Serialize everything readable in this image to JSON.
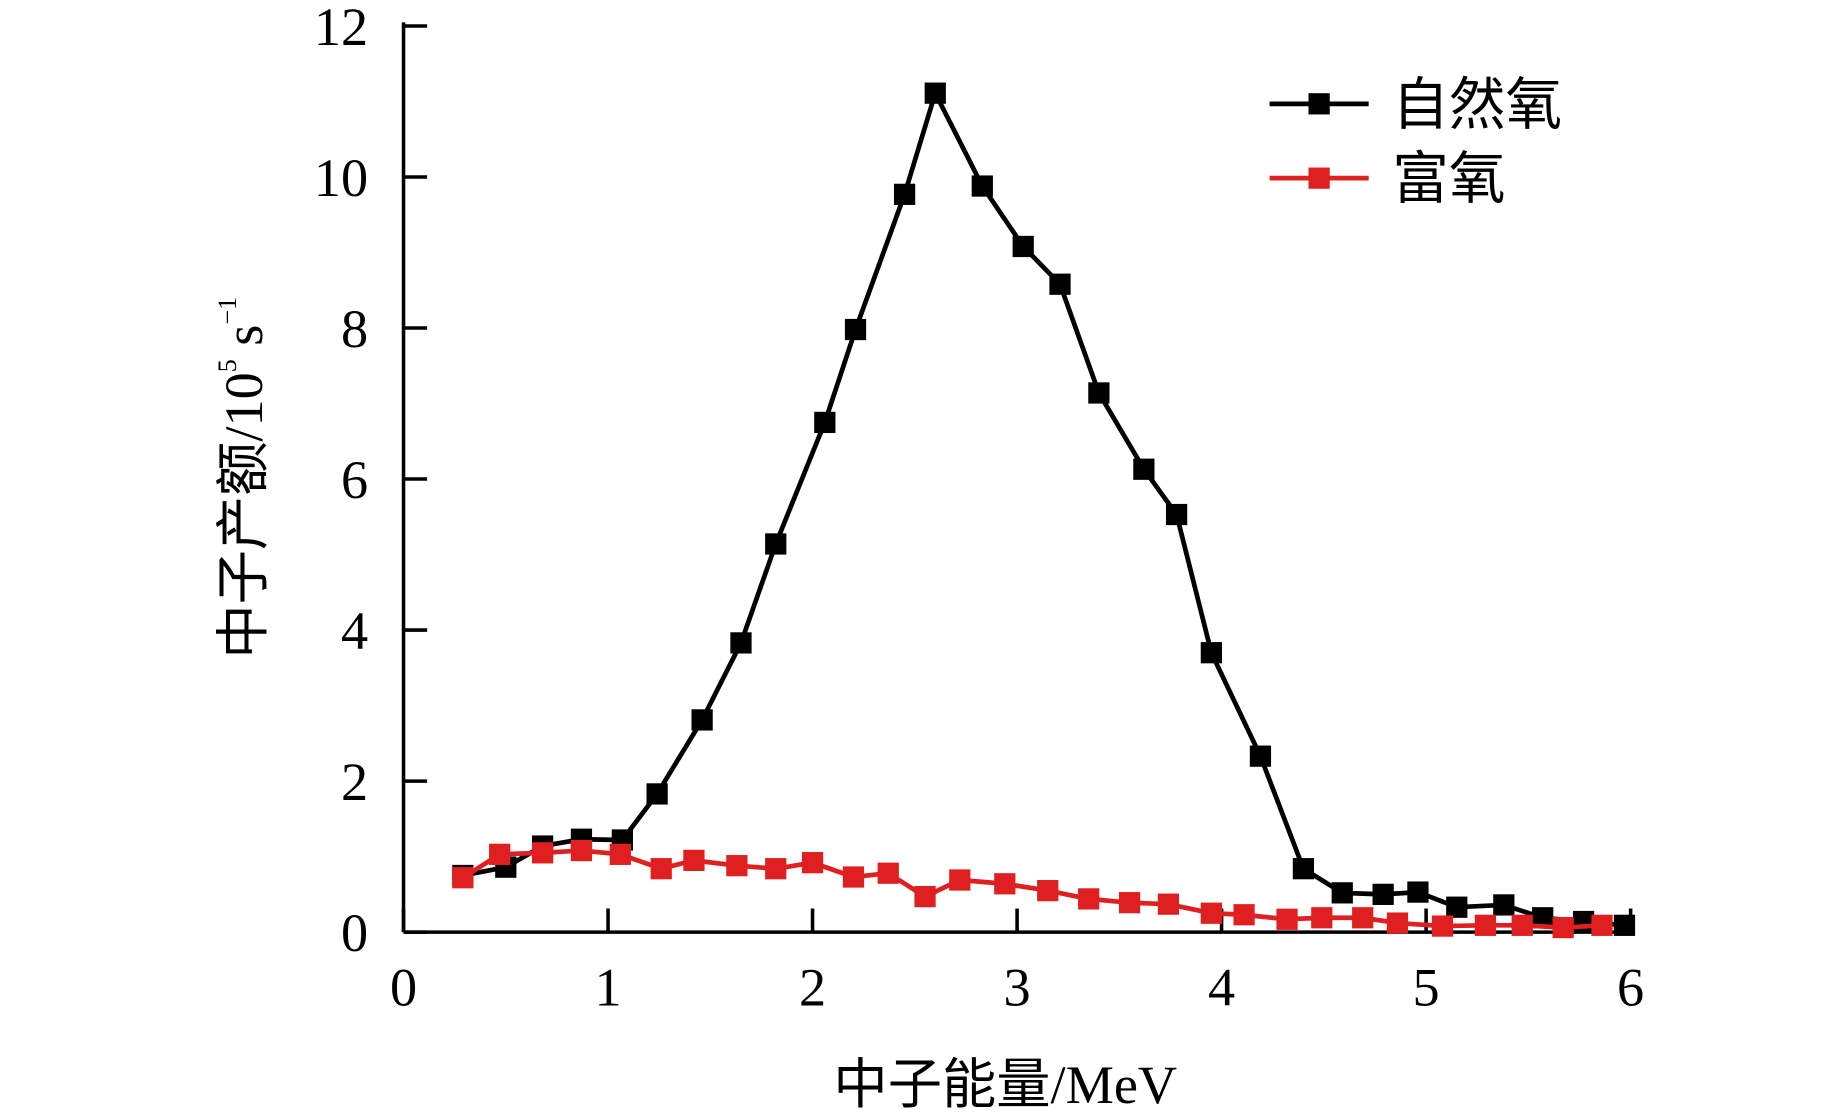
{
  "chart_data": {
    "type": "line",
    "title": "",
    "xlabel": "中子能量/MeV",
    "ylabel_main": "中子产额/10",
    "ylabel_exp": "5",
    "ylabel_unit": " s",
    "ylabel_unit_exp": "−1",
    "xlim": [
      0,
      6
    ],
    "ylim": [
      0,
      12
    ],
    "xticks": [
      "0",
      "1",
      "2",
      "3",
      "4",
      "5",
      "6"
    ],
    "yticks": [
      "0",
      "2",
      "4",
      "6",
      "8",
      "10",
      "12"
    ],
    "grid": false,
    "legend_placement": "top-right",
    "series": [
      {
        "name": "自然氧",
        "color": "#000000",
        "x": [
          0.29,
          0.5,
          0.68,
          0.87,
          1.07,
          1.24,
          1.46,
          1.65,
          1.82,
          2.06,
          2.21,
          2.45,
          2.6,
          2.83,
          3.03,
          3.21,
          3.4,
          3.62,
          3.78,
          3.95,
          4.19,
          4.4,
          4.59,
          4.79,
          4.96,
          5.15,
          5.38,
          5.57,
          5.77,
          5.97
        ],
        "y": [
          0.75,
          0.86,
          1.14,
          1.23,
          1.22,
          1.83,
          2.81,
          3.83,
          5.14,
          6.75,
          7.98,
          9.77,
          11.11,
          9.88,
          9.08,
          8.58,
          7.14,
          6.13,
          5.53,
          3.7,
          2.33,
          0.84,
          0.52,
          0.5,
          0.53,
          0.33,
          0.36,
          0.19,
          0.14,
          0.09
        ]
      },
      {
        "name": "富氧",
        "color": "#e02020",
        "x": [
          0.29,
          0.47,
          0.68,
          0.87,
          1.06,
          1.26,
          1.42,
          1.63,
          1.82,
          2.0,
          2.2,
          2.37,
          2.55,
          2.72,
          2.94,
          3.15,
          3.35,
          3.55,
          3.74,
          3.95,
          4.11,
          4.32,
          4.49,
          4.69,
          4.86,
          5.08,
          5.29,
          5.47,
          5.67,
          5.86
        ],
        "y": [
          0.72,
          1.03,
          1.05,
          1.08,
          1.03,
          0.84,
          0.95,
          0.88,
          0.84,
          0.92,
          0.73,
          0.78,
          0.47,
          0.69,
          0.64,
          0.55,
          0.44,
          0.39,
          0.37,
          0.25,
          0.23,
          0.17,
          0.19,
          0.19,
          0.12,
          0.08,
          0.09,
          0.09,
          0.06,
          0.09
        ]
      }
    ]
  }
}
